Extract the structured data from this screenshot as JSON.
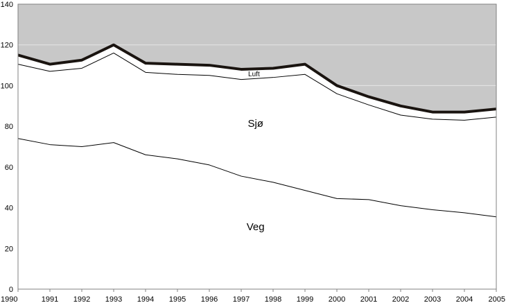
{
  "chart_data": {
    "type": "area",
    "title": "",
    "xlabel": "",
    "ylabel": "",
    "ylim": [
      0,
      140
    ],
    "yticks": [
      0,
      20,
      40,
      60,
      80,
      100,
      120,
      140
    ],
    "x": [
      1990,
      1991,
      1992,
      1993,
      1994,
      1995,
      1996,
      1997,
      1998,
      1999,
      2000,
      2001,
      2002,
      2003,
      2004,
      2005
    ],
    "series": [
      {
        "name": "Veg",
        "values": [
          74,
          71,
          70,
          72,
          66,
          64,
          61,
          55.5,
          52.5,
          48.5,
          44.5,
          44,
          41,
          39,
          37.5,
          35.5
        ]
      },
      {
        "name": "Sjø",
        "values": [
          110.5,
          107,
          108.5,
          116,
          106.5,
          105.5,
          105,
          103,
          104,
          105.5,
          96,
          90.5,
          85.5,
          83.5,
          83,
          84.5
        ]
      },
      {
        "name": "Luft",
        "values": [
          115,
          110.5,
          112.5,
          120,
          111,
          110.5,
          110,
          108,
          108.5,
          110.5,
          100,
          94.5,
          90,
          87,
          87,
          88.5
        ]
      }
    ],
    "colors": {
      "background_area": "#c8c8c8",
      "fill": "#ffffff",
      "total_line": "#1a1410",
      "thin_line": "#000000",
      "grid": "#e6e6e6"
    }
  }
}
